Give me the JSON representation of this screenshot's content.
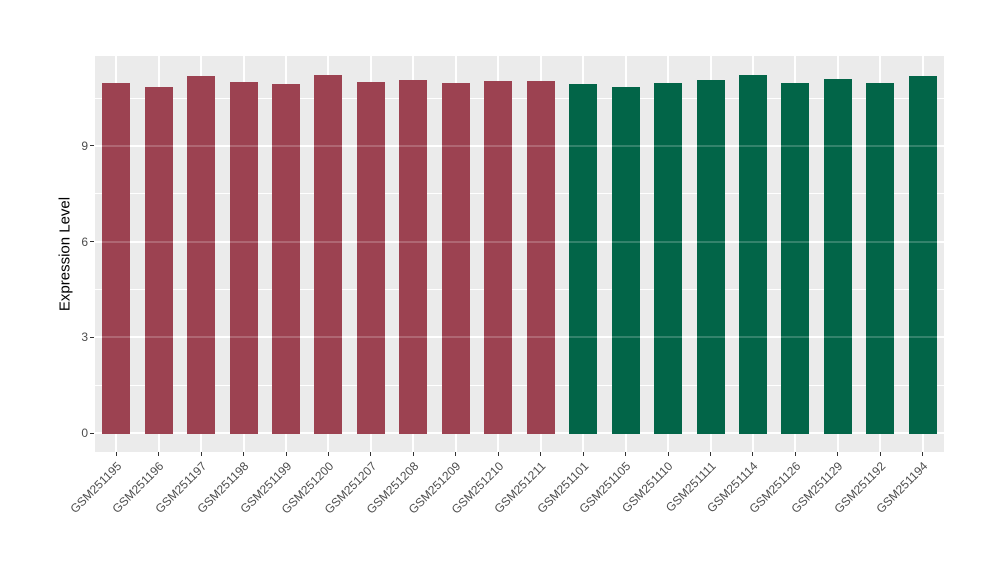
{
  "chart_data": {
    "type": "bar",
    "title": "",
    "xlabel": "",
    "ylabel": "Expression Level",
    "ylim": [
      0,
      11.8
    ],
    "yticks": [
      0,
      3,
      6,
      9
    ],
    "minor_yticks": [
      1.5,
      4.5,
      7.5,
      10.5
    ],
    "grid": "white major and minor horizontal lines plus vertical lines at category centers on gray panel",
    "legend_position": "none",
    "categories": [
      "GSM251195",
      "GSM251196",
      "GSM251197",
      "GSM251198",
      "GSM251199",
      "GSM251200",
      "GSM251207",
      "GSM251208",
      "GSM251209",
      "GSM251210",
      "GSM251211",
      "GSM251101",
      "GSM251105",
      "GSM251110",
      "GSM251111",
      "GSM251114",
      "GSM251126",
      "GSM251129",
      "GSM251192",
      "GSM251194"
    ],
    "values": [
      10.98,
      10.86,
      11.21,
      11.02,
      10.93,
      11.22,
      11.01,
      11.08,
      10.96,
      11.03,
      11.04,
      10.94,
      10.86,
      10.98,
      11.08,
      11.23,
      10.98,
      11.09,
      10.98,
      11.21
    ],
    "bar_colors": [
      "#9C4251",
      "#9C4251",
      "#9C4251",
      "#9C4251",
      "#9C4251",
      "#9C4251",
      "#9C4251",
      "#9C4251",
      "#9C4251",
      "#9C4251",
      "#9C4251",
      "#026548",
      "#026548",
      "#026548",
      "#026548",
      "#026548",
      "#026548",
      "#026548",
      "#026548",
      "#026548"
    ],
    "group_colors": {
      "left_group_bars_1_to_11": "#9C4251",
      "right_group_bars_12_to_20": "#026548"
    }
  },
  "style": {
    "panel_background": "#EBEBEB",
    "grid_color": "#FFFFFF",
    "axis_text_color": "#4D4D4D",
    "axis_title_color": "#000000",
    "tick_mark_color": "#333333",
    "outer_background": "#FFFFFF"
  }
}
